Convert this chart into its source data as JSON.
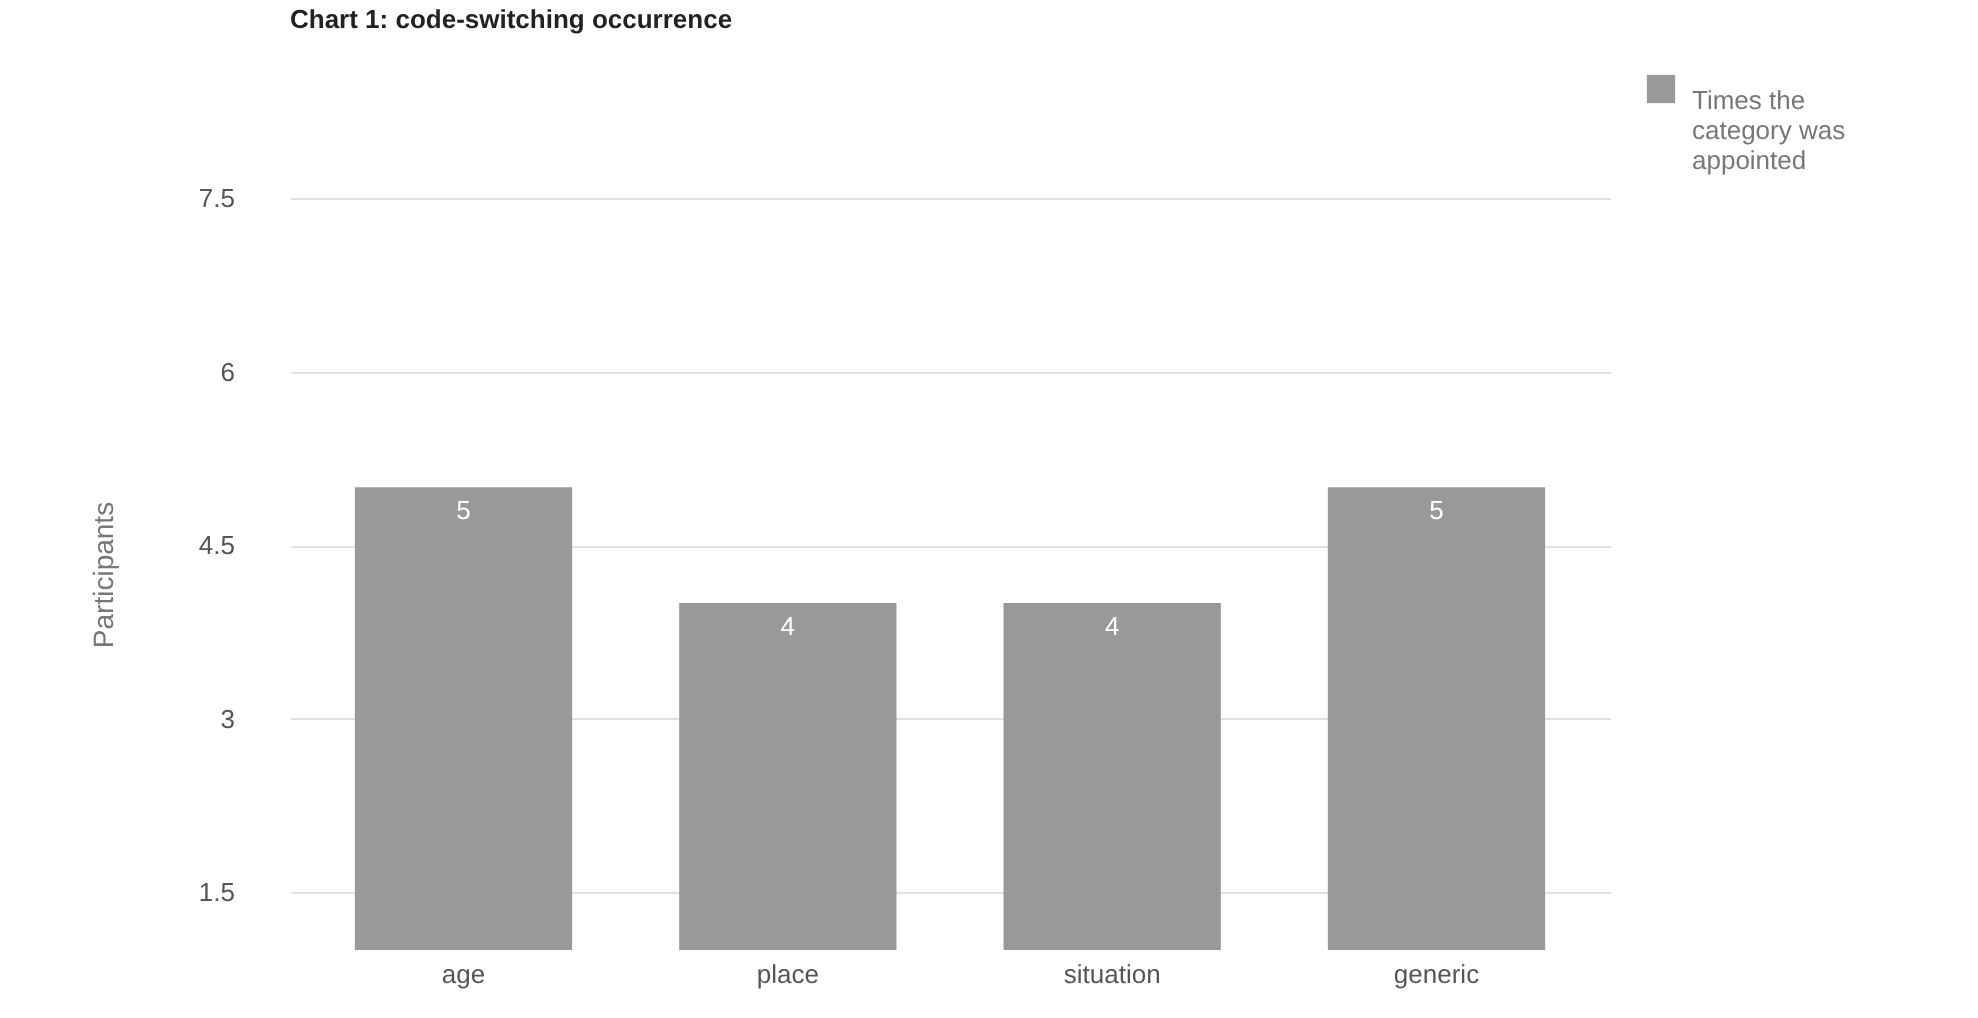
{
  "chart_data": {
    "type": "bar",
    "title": "Chart 1: code-switching occurrence",
    "ylabel": "Participants",
    "categories": [
      "age",
      "place",
      "situation",
      "generic"
    ],
    "series": [
      {
        "name": "Times the category was appointed",
        "color": "#999999",
        "values": [
          5,
          4,
          4,
          5
        ]
      }
    ],
    "ylim": [
      1,
      7.5
    ],
    "yticks": [
      1.5,
      3,
      4.5,
      6,
      7.5
    ],
    "grid": "y",
    "legend": "top right",
    "data_labels": true
  }
}
